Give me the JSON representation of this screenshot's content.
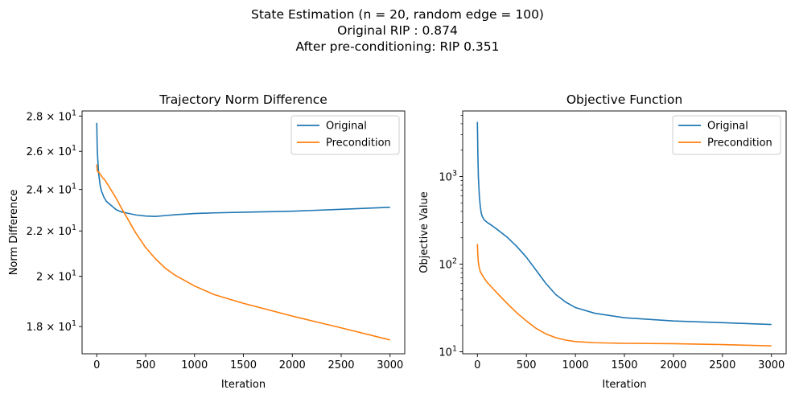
{
  "figure": {
    "title_lines": [
      "State Estimation (n = 20, random edge = 100)",
      "Original RIP : 0.874",
      "After pre-conditioning: RIP 0.351"
    ]
  },
  "colors": {
    "original": "#1f77b4",
    "precondition": "#ff7f0e"
  },
  "chart_data": [
    {
      "type": "line",
      "title": "Trajectory Norm Difference",
      "xlabel": "Iteration",
      "ylabel": "Norm Difference",
      "yscale": "log",
      "xlim": [
        -150,
        3150
      ],
      "ylim": [
        17.0,
        28.3
      ],
      "xticks": [
        0,
        500,
        1000,
        1500,
        2000,
        2500,
        3000
      ],
      "xtick_labels": [
        "0",
        "500",
        "1000",
        "1500",
        "2000",
        "2500",
        "3000"
      ],
      "yticks": [
        18,
        20,
        22,
        24,
        26,
        28
      ],
      "ytick_labels": [
        {
          "base": "1.8 × 10",
          "exp": "1"
        },
        {
          "base": "2 × 10",
          "exp": "1"
        },
        {
          "base": "2.2 × 10",
          "exp": "1"
        },
        {
          "base": "2.4 × 10",
          "exp": "1"
        },
        {
          "base": "2.6 × 10",
          "exp": "1"
        },
        {
          "base": "2.8 × 10",
          "exp": "1"
        }
      ],
      "legend": "top-right",
      "series": [
        {
          "name": "Original",
          "x": [
            0,
            5,
            10,
            20,
            35,
            50,
            75,
            100,
            150,
            200,
            250,
            300,
            400,
            500,
            600,
            700,
            800,
            1000,
            1200,
            1500,
            2000,
            2500,
            3000
          ],
          "y": [
            27.6,
            26.2,
            25.6,
            24.8,
            24.2,
            23.9,
            23.6,
            23.4,
            23.2,
            23.0,
            22.9,
            22.85,
            22.75,
            22.7,
            22.68,
            22.72,
            22.76,
            22.82,
            22.85,
            22.88,
            22.93,
            23.02,
            23.12
          ]
        },
        {
          "name": "Precondition",
          "x": [
            0,
            5,
            10,
            20,
            40,
            60,
            80,
            100,
            150,
            200,
            250,
            300,
            400,
            500,
            600,
            700,
            800,
            1000,
            1200,
            1500,
            2000,
            2500,
            3000
          ],
          "y": [
            25.3,
            25.0,
            24.9,
            24.9,
            24.75,
            24.6,
            24.5,
            24.35,
            23.95,
            23.55,
            23.1,
            22.7,
            21.9,
            21.25,
            20.75,
            20.35,
            20.05,
            19.6,
            19.25,
            18.9,
            18.4,
            17.95,
            17.5
          ]
        }
      ]
    },
    {
      "type": "line",
      "title": "Objective Function",
      "xlabel": "Iteration",
      "ylabel": "Objective Value",
      "yscale": "log",
      "xlim": [
        -150,
        3150
      ],
      "ylim": [
        9.5,
        5600
      ],
      "xticks": [
        0,
        500,
        1000,
        1500,
        2000,
        2500,
        3000
      ],
      "xtick_labels": [
        "0",
        "500",
        "1000",
        "1500",
        "2000",
        "2500",
        "3000"
      ],
      "yticks": [
        10,
        100,
        1000
      ],
      "ytick_labels": [
        {
          "base": "10",
          "exp": "1"
        },
        {
          "base": "10",
          "exp": "2"
        },
        {
          "base": "10",
          "exp": "3"
        }
      ],
      "legend": "top-right",
      "series": [
        {
          "name": "Original",
          "x": [
            0,
            5,
            10,
            20,
            30,
            40,
            50,
            70,
            100,
            150,
            200,
            300,
            400,
            500,
            600,
            700,
            800,
            900,
            1000,
            1200,
            1500,
            2000,
            2500,
            3000
          ],
          "y": [
            4200,
            1800,
            1000,
            600,
            450,
            380,
            350,
            320,
            300,
            275,
            250,
            205,
            160,
            120,
            85,
            60,
            45,
            37,
            32,
            27.5,
            24.5,
            22.5,
            21.5,
            20.5
          ]
        },
        {
          "name": "Precondition",
          "x": [
            0,
            5,
            10,
            20,
            30,
            50,
            70,
            100,
            150,
            200,
            300,
            400,
            500,
            600,
            700,
            800,
            900,
            1000,
            1200,
            1500,
            2000,
            2500,
            3000
          ],
          "y": [
            170,
            125,
            105,
            90,
            82,
            75,
            69,
            62,
            54,
            47,
            36,
            28,
            22.5,
            18.5,
            16,
            14.5,
            13.6,
            13.1,
            12.7,
            12.5,
            12.4,
            12.1,
            11.7
          ]
        }
      ]
    }
  ]
}
